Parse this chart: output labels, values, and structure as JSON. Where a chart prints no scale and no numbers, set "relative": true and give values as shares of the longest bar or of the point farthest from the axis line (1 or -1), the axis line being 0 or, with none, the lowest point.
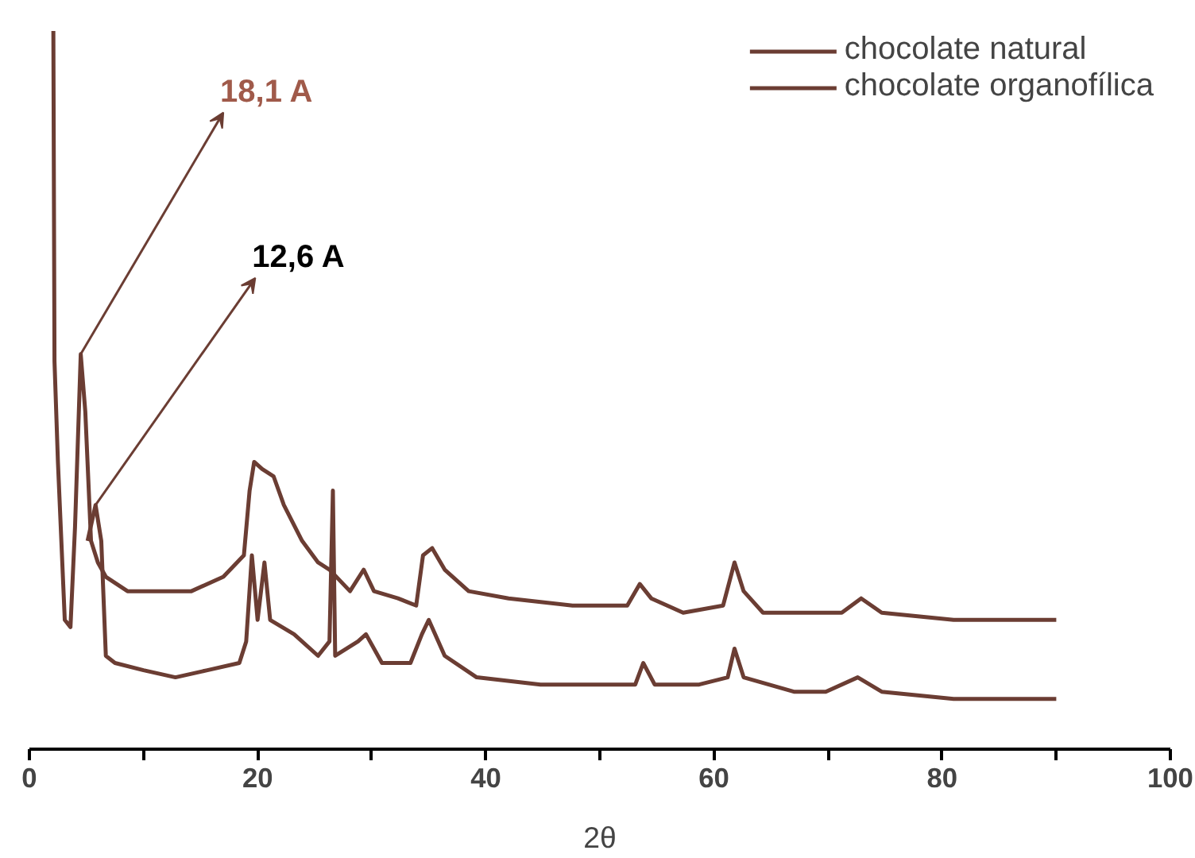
{
  "chart_data": {
    "type": "line",
    "relative": true,
    "xlabel": "2θ",
    "xlim": [
      0,
      100
    ],
    "xticks": [
      0,
      {
        "value": 10,
        "label": null
      },
      20,
      {
        "value": 30,
        "label": null
      },
      40,
      {
        "value": 50,
        "label": null
      },
      60,
      {
        "value": 70,
        "label": null
      },
      80,
      {
        "value": 90,
        "label": null
      },
      100
    ],
    "grid": false,
    "legend": "top right",
    "marker": "none",
    "line_style": "solid",
    "annotations": [
      {
        "text": "18,1 A",
        "x": 4.5,
        "y": 0.55
      },
      {
        "text": "12,6 A",
        "x": 5.8,
        "y": 0.34
      }
    ],
    "series": [
      {
        "name": "chocolate natural",
        "color": "#6b3d33",
        "x": [
          5.1,
          5.8,
          6.3,
          6.7,
          7.5,
          10.0,
          12.8,
          15.6,
          18.4,
          19.0,
          19.5,
          20.0,
          20.6,
          21.1,
          23.2,
          25.3,
          26.3,
          26.6,
          26.8,
          28.8,
          29.5,
          30.9,
          33.4,
          34.4,
          35.0,
          36.4,
          39.2,
          44.8,
          50.3,
          53.1,
          53.8,
          54.8,
          58.7,
          61.2,
          61.8,
          62.6,
          67.0,
          69.8,
          72.6,
          74.7,
          81.0,
          90.0
        ],
        "values": [
          0.29,
          0.34,
          0.29,
          0.13,
          0.12,
          0.11,
          0.1,
          0.11,
          0.12,
          0.15,
          0.27,
          0.18,
          0.26,
          0.18,
          0.16,
          0.13,
          0.15,
          0.36,
          0.13,
          0.15,
          0.16,
          0.12,
          0.12,
          0.16,
          0.18,
          0.13,
          0.1,
          0.09,
          0.09,
          0.09,
          0.12,
          0.09,
          0.09,
          0.1,
          0.14,
          0.1,
          0.08,
          0.08,
          0.1,
          0.08,
          0.07,
          0.07
        ]
      },
      {
        "name": "chocolate organofílica",
        "color": "#6b3d33",
        "x": [
          2.1,
          2.2,
          2.5,
          3.1,
          3.6,
          4.0,
          4.5,
          4.9,
          5.4,
          6.0,
          6.7,
          8.6,
          11.4,
          14.2,
          17.0,
          18.8,
          19.3,
          19.7,
          20.4,
          21.4,
          22.3,
          23.9,
          25.3,
          26.3,
          28.1,
          29.3,
          30.2,
          32.3,
          33.9,
          34.5,
          35.3,
          36.4,
          38.5,
          42.0,
          47.6,
          52.4,
          53.5,
          54.5,
          57.3,
          60.8,
          61.8,
          62.6,
          64.3,
          71.2,
          72.9,
          74.7,
          81.0,
          90.0
        ],
        "values": [
          1.0,
          0.54,
          0.4,
          0.18,
          0.17,
          0.31,
          0.55,
          0.47,
          0.29,
          0.26,
          0.24,
          0.22,
          0.22,
          0.22,
          0.24,
          0.27,
          0.36,
          0.4,
          0.39,
          0.38,
          0.34,
          0.29,
          0.26,
          0.25,
          0.22,
          0.25,
          0.22,
          0.21,
          0.2,
          0.27,
          0.28,
          0.25,
          0.22,
          0.21,
          0.2,
          0.2,
          0.23,
          0.21,
          0.19,
          0.2,
          0.26,
          0.22,
          0.19,
          0.19,
          0.21,
          0.19,
          0.18,
          0.18
        ]
      }
    ]
  }
}
